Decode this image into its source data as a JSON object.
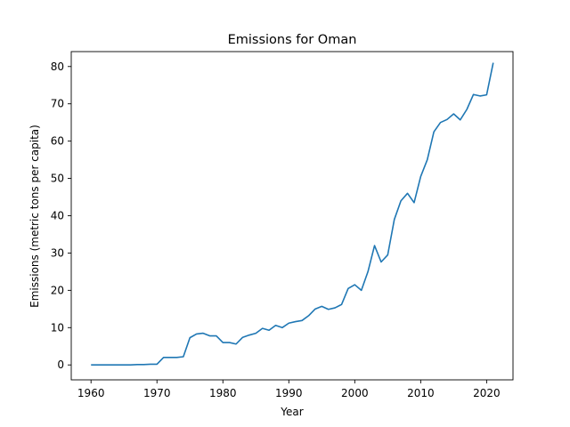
{
  "chart_data": {
    "type": "line",
    "title": "Emissions for Oman",
    "xlabel": "Year",
    "ylabel": "Emissions (metric tons per capita)",
    "xlim": [
      1957,
      2024
    ],
    "ylim": [
      -4,
      84
    ],
    "xticks": [
      1960,
      1970,
      1980,
      1990,
      2000,
      2010,
      2020
    ],
    "yticks": [
      0,
      10,
      20,
      30,
      40,
      50,
      60,
      70,
      80
    ],
    "grid": false,
    "color": "#1f77b4",
    "series": [
      {
        "x": [
          1960,
          1961,
          1962,
          1963,
          1964,
          1965,
          1966,
          1967,
          1968,
          1969,
          1970,
          1971,
          1972,
          1973,
          1974,
          1975,
          1976,
          1977,
          1978,
          1979,
          1980,
          1981,
          1982,
          1983,
          1984,
          1985,
          1986,
          1987,
          1988,
          1989,
          1990,
          1991,
          1992,
          1993,
          1994,
          1995,
          1996,
          1997,
          1998,
          1999,
          2000,
          2001,
          2002,
          2003,
          2004,
          2005,
          2006,
          2007,
          2008,
          2009,
          2010,
          2011,
          2012,
          2013,
          2014,
          2015,
          2016,
          2017,
          2018,
          2019,
          2020,
          2021
        ],
        "values": [
          0.0,
          0.0,
          0.0,
          0.0,
          0.0,
          0.0,
          0.0,
          0.1,
          0.1,
          0.2,
          0.2,
          2.0,
          2.0,
          2.0,
          2.2,
          7.3,
          8.3,
          8.5,
          7.8,
          7.8,
          6.0,
          6.0,
          5.6,
          7.4,
          8.0,
          8.5,
          9.8,
          9.3,
          10.6,
          10.0,
          11.2,
          11.6,
          11.9,
          13.2,
          15.0,
          15.7,
          14.9,
          15.3,
          16.2,
          20.5,
          21.5,
          20.0,
          25.0,
          32.0,
          27.6,
          29.5,
          39.0,
          44.0,
          46.0,
          43.5,
          50.5,
          55.0,
          62.5,
          65.0,
          65.8,
          67.3,
          65.7,
          68.5,
          72.5,
          72.1,
          72.4,
          81.0
        ]
      }
    ]
  }
}
